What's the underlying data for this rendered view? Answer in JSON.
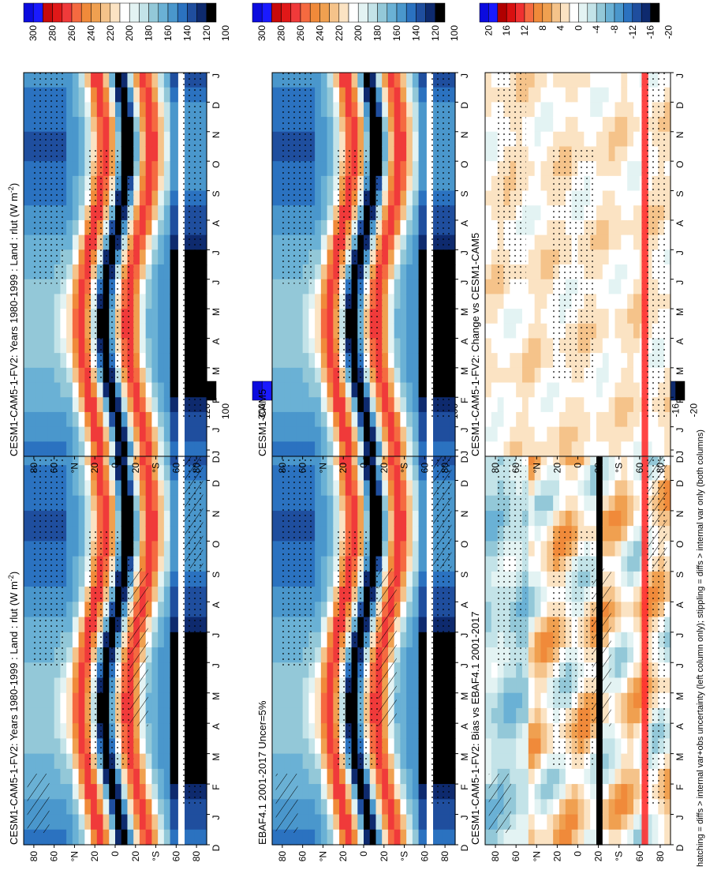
{
  "figure": {
    "footer_note": "hatching = diffs > internal var+obs uncertainty (left column only); stippling = diffs > internal var only (both columns)"
  },
  "colors": {
    "abs_scale": [
      "#0b0bde",
      "#1a1aff",
      "#c80a0a",
      "#e01818",
      "#f03a3a",
      "#f56a40",
      "#f08a3a",
      "#f0a050",
      "#f5c38a",
      "#fbe3c3",
      "#ffffff",
      "#e3f3f3",
      "#c3e3e8",
      "#93c8d8",
      "#6ab1d5",
      "#4a97cc",
      "#2b72c0",
      "#1f4e9e",
      "#0e2a6e",
      "#000000"
    ],
    "diff_scale": [
      "#0b0bde",
      "#1a1aff",
      "#b00000",
      "#d81010",
      "#f03030",
      "#f56a40",
      "#f08a3a",
      "#f0a050",
      "#f5c38a",
      "#fbe3c3",
      "#ffffff",
      "#e3f3f3",
      "#c3e3e8",
      "#93c8d8",
      "#6ab1d5",
      "#4a97cc",
      "#2b72c0",
      "#1f4e9e",
      "#0e2a6e",
      "#000000"
    ]
  },
  "chart_data": [
    {
      "type": "heatmap",
      "id": "model-top-left",
      "title": "CESM1-CAM5-1-FV2: Years 1980-1999 : Land : rlut (W m",
      "title_sup": "-2",
      "title_end": ")",
      "xlabel": "",
      "ylabel": "",
      "months": [
        "D",
        "J",
        "F",
        "M",
        "A",
        "M",
        "J",
        "J",
        "A",
        "S",
        "O",
        "N",
        "D",
        "J"
      ],
      "lat_labels": [
        "80",
        "60",
        "°N",
        "20",
        "0",
        "20",
        "°S",
        "60",
        "80"
      ],
      "colorbar_ticks": [
        "300",
        "280",
        "260",
        "240",
        "220",
        "200",
        "180",
        "160",
        "140",
        "120",
        "100"
      ],
      "colorbar_range": [
        100,
        310
      ],
      "units": "W m-2",
      "hatching": true,
      "stippling": true
    },
    {
      "type": "heatmap",
      "id": "obs-middle-left",
      "title": "EBAF4.1 2001-2017 Uncer=5%",
      "months": [
        "D",
        "J",
        "F",
        "M",
        "A",
        "M",
        "J",
        "J",
        "A",
        "S",
        "O",
        "N",
        "D",
        "J"
      ],
      "lat_labels": [
        "80",
        "60",
        "°N",
        "20",
        "0",
        "20",
        "°S",
        "60",
        "80"
      ],
      "colorbar_ticks": [
        "300",
        "280",
        "260",
        "240",
        "220",
        "200",
        "180",
        "160",
        "140",
        "120",
        "100"
      ],
      "colorbar_range": [
        100,
        310
      ],
      "hatching": true,
      "stippling": true
    },
    {
      "type": "heatmap",
      "id": "bias-bottom-left",
      "title": "CESM1-CAM5-1-FV2: Bias vs EBAF4.1 2001-2017",
      "months": [
        "D",
        "J",
        "F",
        "M",
        "A",
        "M",
        "J",
        "J",
        "A",
        "S",
        "O",
        "N",
        "D",
        "J"
      ],
      "lat_labels": [
        "80",
        "60",
        "°N",
        "20",
        "0",
        "20",
        "°S",
        "60",
        "80"
      ],
      "colorbar_ticks": [
        "20",
        "16",
        "12",
        "8",
        "4",
        "0",
        "-4",
        "-8",
        "-12",
        "-16",
        "-20"
      ],
      "colorbar_range": [
        -22,
        22
      ],
      "hatching": true,
      "stippling": true
    },
    {
      "type": "heatmap",
      "id": "model-top-right",
      "title": "CESM1-CAM5-1-FV2: Years 1980-1999 : Land : rlut (W m",
      "title_sup": "-2",
      "title_end": ")",
      "months": [
        "D",
        "J",
        "F",
        "M",
        "A",
        "M",
        "J",
        "J",
        "A",
        "S",
        "O",
        "N",
        "D",
        "J"
      ],
      "lat_labels": [
        "80",
        "60",
        "°N",
        "20",
        "0",
        "20",
        "°S",
        "60",
        "80"
      ],
      "colorbar_ticks": [
        "300",
        "280",
        "260",
        "240",
        "220",
        "200",
        "180",
        "160",
        "140",
        "120",
        "100"
      ],
      "colorbar_range": [
        100,
        310
      ],
      "hatching": false,
      "stippling": true
    },
    {
      "type": "heatmap",
      "id": "ref-middle-right",
      "title": "CESM1-CAM5",
      "months": [
        "D",
        "J",
        "F",
        "M",
        "A",
        "M",
        "J",
        "J",
        "A",
        "S",
        "O",
        "N",
        "D",
        "J"
      ],
      "lat_labels": [
        "80",
        "60",
        "°N",
        "20",
        "0",
        "20",
        "°S",
        "60",
        "80"
      ],
      "colorbar_ticks": [
        "300",
        "280",
        "260",
        "240",
        "220",
        "200",
        "180",
        "160",
        "140",
        "120",
        "100"
      ],
      "colorbar_range": [
        100,
        310
      ],
      "hatching": false,
      "stippling": true
    },
    {
      "type": "heatmap",
      "id": "change-bottom-right",
      "title": "CESM1-CAM5-1-FV2: Change vs CESM1-CAM5",
      "months": [
        "D",
        "J",
        "F",
        "M",
        "A",
        "M",
        "J",
        "J",
        "A",
        "S",
        "O",
        "N",
        "D",
        "J"
      ],
      "lat_labels": [
        "80",
        "60",
        "°N",
        "20",
        "0",
        "20",
        "°S",
        "60",
        "80"
      ],
      "colorbar_ticks": [
        "20",
        "16",
        "12",
        "8",
        "4",
        "0",
        "-4",
        "-8",
        "-12",
        "-16",
        "-20"
      ],
      "colorbar_range": [
        -22,
        22
      ],
      "hatching": false,
      "stippling": true
    }
  ]
}
